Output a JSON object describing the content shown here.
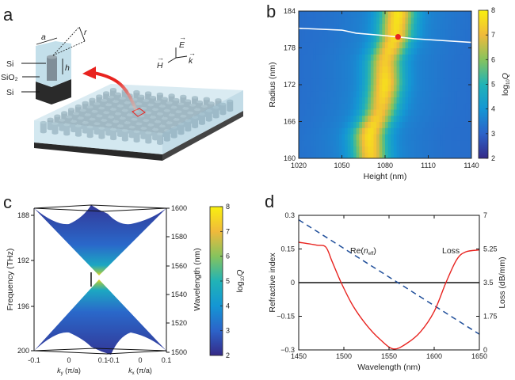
{
  "panel_labels": {
    "a": "a",
    "b": "b",
    "c": "c",
    "d": "d"
  },
  "colors": {
    "colormap": [
      "#352a87",
      "#2c63c9",
      "#1496d4",
      "#21b3b6",
      "#86c35d",
      "#f0ba3b",
      "#f9f00f"
    ],
    "loss_curve": "#e8231f",
    "neff_curve": "#1f4e9a",
    "bic_line": "#ffffff",
    "bic_point": "#e8231f",
    "slab_glass": "#bcdbe8",
    "substrate": "#333333",
    "pillar": "#7f8e98"
  },
  "schematic": {
    "labels": {
      "lattice_a": "a",
      "radius_r": "r",
      "height_h": "h",
      "layer_top": "Si",
      "layer_mid": "SiO₂",
      "layer_bottom": "Si"
    },
    "field_axes": {
      "E": "E",
      "H": "H",
      "k": "k",
      "arrow": "→"
    }
  },
  "chart_data": [
    {
      "panel": "b",
      "type": "heatmap",
      "xlabel": "Height (nm)",
      "ylabel": "Radius (nm)",
      "colorbar_label": {
        "base": "log",
        "sub": "10",
        "var": "Q"
      },
      "xlim": [
        1020,
        1140
      ],
      "ylim": [
        160,
        184
      ],
      "xticks": [
        "1020",
        "1050",
        "1080",
        "1110",
        "1140"
      ],
      "yticks": [
        "160",
        "166",
        "172",
        "178",
        "184"
      ],
      "clim": [
        2,
        8
      ],
      "cticks": [
        "2",
        "3",
        "4",
        "5",
        "6",
        "7",
        "8"
      ],
      "background_log10Q": 3.2,
      "high_Q_ridge": [
        {
          "radius": 160,
          "height": 1070,
          "log10Q": 6.8
        },
        {
          "radius": 164,
          "height": 1069,
          "log10Q": 7.1
        },
        {
          "radius": 168,
          "height": 1077,
          "log10Q": 6.6
        },
        {
          "radius": 172,
          "height": 1080,
          "log10Q": 7.1
        },
        {
          "radius": 176,
          "height": 1080,
          "log10Q": 6.7
        },
        {
          "radius": 180,
          "height": 1087,
          "log10Q": 7.0
        },
        {
          "radius": 184,
          "height": 1089,
          "log10Q": 7.2
        }
      ],
      "white_line": [
        {
          "height": 1020,
          "radius": 181.2
        },
        {
          "height": 1050,
          "radius": 180.9
        },
        {
          "height": 1060,
          "radius": 180.4
        },
        {
          "height": 1080,
          "radius": 180.0
        },
        {
          "height": 1100,
          "radius": 179.5
        },
        {
          "height": 1140,
          "radius": 178.9
        }
      ],
      "marked_point": {
        "height": 1089,
        "radius": 179.8
      }
    },
    {
      "panel": "c",
      "type": "surface",
      "ylabel_left": "Frequency (THz)",
      "ylabel_right": "Wavelength (nm)",
      "xlabel_ky": {
        "k": "k",
        "sub": "y",
        "unit": " (π/a)"
      },
      "xlabel_kx": {
        "k": "k",
        "sub": "x",
        "unit": " (π/a)"
      },
      "ky_ticks": [
        "-0.1",
        "0",
        "0.1"
      ],
      "kx_ticks": [
        "-0.1",
        "0",
        "0.1"
      ],
      "freq_ticks": [
        "188",
        "192",
        "196",
        "200"
      ],
      "wavelength_ticks": [
        "1500",
        "1520",
        "1540",
        "1560",
        "1580",
        "1600"
      ],
      "freq_lim": [
        188,
        200
      ],
      "wavelength_lim": [
        1500,
        1600
      ],
      "k_lim": [
        -0.1,
        0.1
      ],
      "dirac_point": {
        "wavelength": 1550,
        "log10Q": 7.5
      },
      "edge_log10Q": 2.5,
      "colorbar_label": {
        "base": "log",
        "sub": "10",
        "var": "Q"
      },
      "clim": [
        2,
        8
      ],
      "cticks": [
        "2",
        "3",
        "4",
        "5",
        "6",
        "7",
        "8"
      ]
    },
    {
      "panel": "d",
      "type": "line",
      "xlabel": "Wavelength (nm)",
      "ylabel_left": "Refractive index",
      "ylabel_right": "Loss (dB/mm)",
      "xlim": [
        1450,
        1650
      ],
      "ylim_left": [
        -0.3,
        0.3
      ],
      "ylim_right": [
        0,
        7
      ],
      "xticks": [
        "1450",
        "1500",
        "1550",
        "1600",
        "1650"
      ],
      "yticks_left": [
        "−0.3",
        "−0.15",
        "0",
        "0.15",
        "0.3"
      ],
      "yticks_right": [
        "0",
        "1.75",
        "3.5",
        "5.25",
        "7"
      ],
      "annotations": {
        "neff_prefix": "Re(",
        "neff_n": "n",
        "neff_sub": "eff",
        "neff_suffix": ")",
        "loss": "Loss"
      },
      "series": [
        {
          "name": "Re(n_eff)",
          "axis": "left",
          "style": "dashed",
          "x": [
            1450,
            1650
          ],
          "y": [
            0.28,
            -0.23
          ]
        },
        {
          "name": "Loss",
          "axis": "right",
          "style": "solid",
          "x": [
            1450,
            1470,
            1480,
            1487,
            1497,
            1510,
            1525,
            1540,
            1555,
            1570,
            1585,
            1600,
            1613,
            1625,
            1635,
            1650
          ],
          "y": [
            5.6,
            5.45,
            5.35,
            4.6,
            3.5,
            2.3,
            1.3,
            0.55,
            0.05,
            0.35,
            0.95,
            2.0,
            3.5,
            4.7,
            5.1,
            5.2
          ]
        }
      ]
    }
  ]
}
